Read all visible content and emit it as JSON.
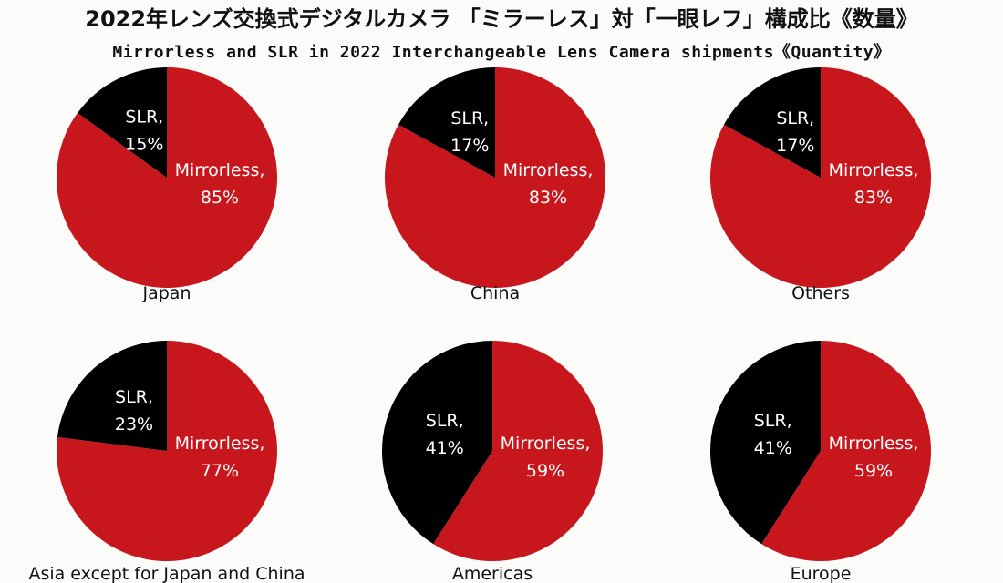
{
  "title": "2022年レンズ交換式デジタルカメラ 「ミラーレス」対「一眼レフ」構成比《数量》",
  "subtitle": "Mirrorless and SLR in 2022 Interchangeable Lens Camera shipments《Quantity》",
  "chart_data": [
    {
      "type": "pie",
      "title": "Japan",
      "categories": [
        "Mirrorless,",
        "SLR,"
      ],
      "values": [
        85,
        15
      ],
      "value_labels": [
        "85%",
        "15%"
      ],
      "colors": [
        "#c8161d",
        "#000000"
      ]
    },
    {
      "type": "pie",
      "title": "China",
      "categories": [
        "Mirrorless,",
        "SLR,"
      ],
      "values": [
        83,
        17
      ],
      "value_labels": [
        "83%",
        "17%"
      ],
      "colors": [
        "#c8161d",
        "#000000"
      ]
    },
    {
      "type": "pie",
      "title": "Others",
      "categories": [
        "Mirrorless,",
        "SLR,"
      ],
      "values": [
        83,
        17
      ],
      "value_labels": [
        "83%",
        "17%"
      ],
      "colors": [
        "#c8161d",
        "#000000"
      ]
    },
    {
      "type": "pie",
      "title": "Asia except for Japan and China",
      "categories": [
        "Mirrorless,",
        "SLR,"
      ],
      "values": [
        77,
        23
      ],
      "value_labels": [
        "77%",
        "23%"
      ],
      "colors": [
        "#c8161d",
        "#000000"
      ]
    },
    {
      "type": "pie",
      "title": "Americas",
      "categories": [
        "Mirrorless,",
        "SLR,"
      ],
      "values": [
        59,
        41
      ],
      "value_labels": [
        "59%",
        "41%"
      ],
      "colors": [
        "#c8161d",
        "#000000"
      ]
    },
    {
      "type": "pie",
      "title": "Europe",
      "categories": [
        "Mirrorless,",
        "SLR,"
      ],
      "values": [
        59,
        41
      ],
      "value_labels": [
        "59%",
        "41%"
      ],
      "colors": [
        "#c8161d",
        "#000000"
      ]
    }
  ]
}
